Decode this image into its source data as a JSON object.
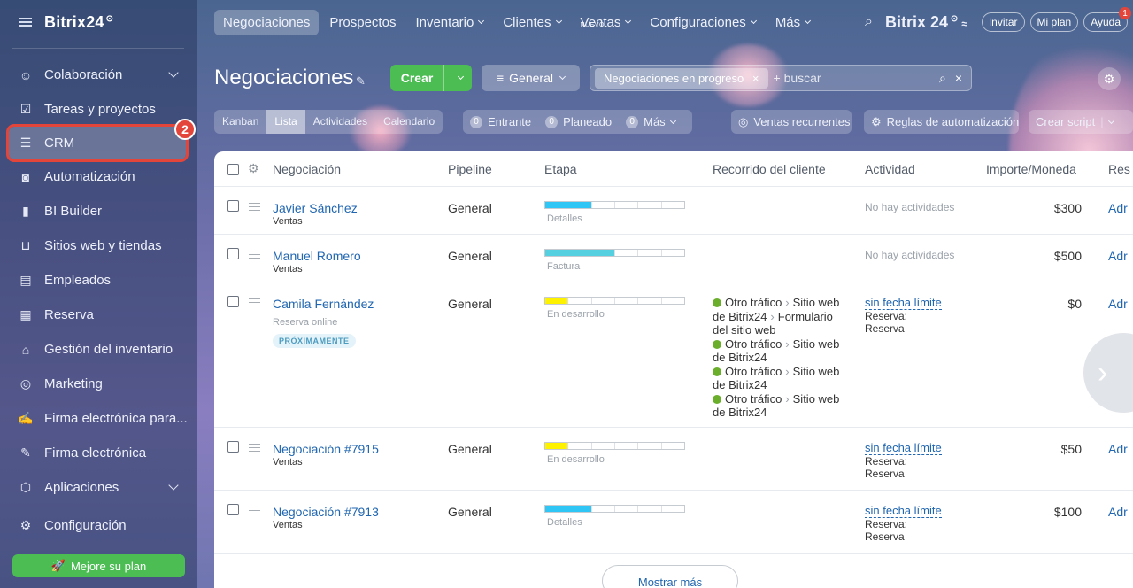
{
  "app": {
    "brand": "Bitrix24",
    "brand_mark": "⊙"
  },
  "sidebar": {
    "badge": "2",
    "items": [
      {
        "label": "Colaboración",
        "icon": "collaboration-icon",
        "chevron": true
      },
      {
        "label": "Tareas y proyectos",
        "icon": "tasks-icon"
      },
      {
        "label": "CRM",
        "icon": "crm-filter-icon",
        "active": true
      },
      {
        "label": "Automatización",
        "icon": "robot-icon"
      },
      {
        "label": "BI Builder",
        "icon": "bar-chart-icon"
      },
      {
        "label": "Sitios web y tiendas",
        "icon": "cart-icon"
      },
      {
        "label": "Empleados",
        "icon": "employee-card-icon"
      },
      {
        "label": "Reserva",
        "icon": "calendar-icon"
      },
      {
        "label": "Gestión del inventario",
        "icon": "warehouse-icon"
      },
      {
        "label": "Marketing",
        "icon": "target-icon"
      },
      {
        "label": "Firma electrónica para...",
        "icon": "sign-document-icon"
      },
      {
        "label": "Firma electrónica",
        "icon": "pen-icon"
      },
      {
        "label": "Aplicaciones",
        "icon": "cube-icon",
        "chevron": true
      },
      {
        "label": "Configuración",
        "icon": "gear-icon"
      }
    ],
    "upgrade_label": "Mejore su plan"
  },
  "topnav": {
    "tabs": [
      {
        "label": "Negociaciones",
        "active": true
      },
      {
        "label": "Prospectos"
      },
      {
        "label": "Inventario",
        "dropdown": true
      },
      {
        "label": "Clientes",
        "dropdown": true
      },
      {
        "label": "Ventas",
        "dropdown": true,
        "tag": "NUEVO"
      },
      {
        "label": "Configuraciones",
        "dropdown": true
      },
      {
        "label": "Más",
        "dropdown": true
      }
    ],
    "brand": "Bitrix 24",
    "invite": "Invitar",
    "plan": "Mi plan",
    "help": "Ayuda",
    "help_badge": "1"
  },
  "toolbar": {
    "title": "Negociaciones",
    "create": "Crear",
    "pipeline": "General",
    "filter_chip": "Negociaciones en progreso",
    "search_placeholder": "+ buscar"
  },
  "views": {
    "tabs": [
      "Kanban",
      "Lista",
      "Actividades",
      "Calendario"
    ],
    "active": "Lista",
    "counters": [
      {
        "num": "0",
        "label": "Entrante"
      },
      {
        "num": "0",
        "label": "Planeado"
      },
      {
        "num": "0",
        "label": "Más"
      }
    ],
    "recurring": "Ventas recurrentes",
    "automation": "Reglas de automatización",
    "script": "Crear script"
  },
  "table": {
    "headers": {
      "deal": "Negociación",
      "pipeline": "Pipeline",
      "stage": "Etapa",
      "journey": "Recorrido del cliente",
      "activity": "Actividad",
      "amount": "Importe/Moneda",
      "resp": "Res"
    },
    "rows": [
      {
        "name": "Javier Sánchez",
        "sub": "Ventas",
        "pipeline": "General",
        "stage": "Detalles",
        "stage_fill": 0.33,
        "stage_color": "#2fc6f6",
        "activity": "No hay actividades",
        "amount": "$300",
        "resp": "Adr"
      },
      {
        "name": "Manuel Romero",
        "sub": "Ventas",
        "pipeline": "General",
        "stage": "Factura",
        "stage_fill": 0.5,
        "stage_color": "#55d0e0",
        "activity": "No hay actividades",
        "amount": "$500",
        "resp": "Adr"
      },
      {
        "name": "Camila Fernández",
        "source": "Reserva online",
        "badge": "PRÓXIMAMENTE",
        "pipeline": "General",
        "stage": "En desarrollo",
        "stage_fill": 0.17,
        "stage_color": "#fff200",
        "journey": {
          "first": [
            "Otro tráfico",
            "Sitio web de Bitrix24",
            "Formulario del sitio web"
          ],
          "rest": [
            [
              "Otro tráfico",
              "Sitio web de Bitrix24"
            ],
            [
              "Otro tráfico",
              "Sitio web de Bitrix24"
            ],
            [
              "Otro tráfico",
              "Sitio web de Bitrix24"
            ]
          ]
        },
        "activity_link": "sin fecha límite",
        "activity_l1": "Reserva:",
        "activity_l2": "Reserva",
        "amount": "$0",
        "resp": "Adr"
      },
      {
        "name": "Negociación #7915",
        "sub": "Ventas",
        "pipeline": "General",
        "stage": "En desarrollo",
        "stage_fill": 0.17,
        "stage_color": "#fff200",
        "activity_link": "sin fecha límite",
        "activity_l1": "Reserva:",
        "activity_l2": "Reserva",
        "amount": "$50",
        "resp": "Adr"
      },
      {
        "name": "Negociación #7913",
        "sub": "Ventas",
        "pipeline": "General",
        "stage": "Detalles",
        "stage_fill": 0.33,
        "stage_color": "#2fc6f6",
        "activity_link": "sin fecha límite",
        "activity_l1": "Reserva:",
        "activity_l2": "Reserva",
        "amount": "$100",
        "resp": "Adr"
      }
    ],
    "show_more": "Mostrar más"
  }
}
